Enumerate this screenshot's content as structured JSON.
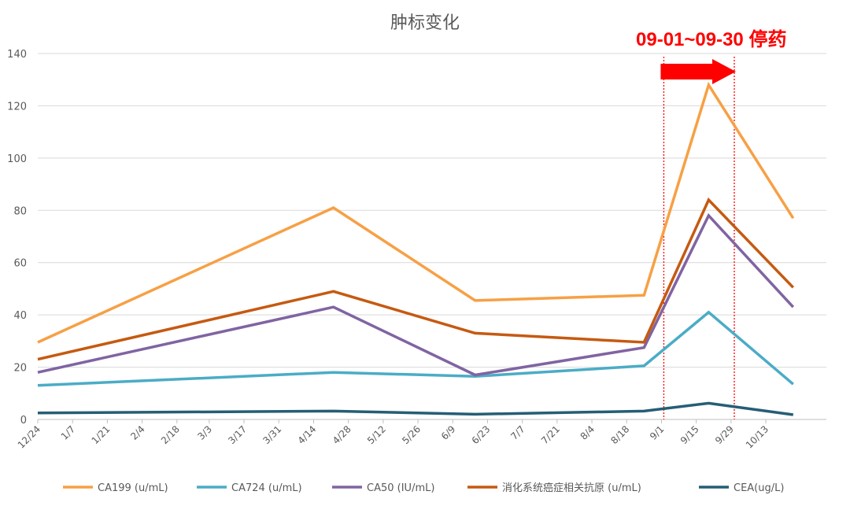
{
  "chart_data": {
    "type": "line",
    "title": "肿标变化",
    "ylim": [
      0,
      140
    ],
    "yticks": [
      0,
      20,
      40,
      60,
      80,
      100,
      120,
      140
    ],
    "grid": true,
    "legend_position": "bottom",
    "x_tick_labels": [
      "12/24",
      "1/7",
      "1/21",
      "2/4",
      "2/18",
      "3/3",
      "3/17",
      "3/31",
      "4/14",
      "4/28",
      "5/12",
      "5/26",
      "6/9",
      "6/23",
      "7/7",
      "7/21",
      "8/4",
      "8/18",
      "9/1",
      "9/15",
      "9/29",
      "10/13"
    ],
    "x_points": [
      "12/24",
      "4/22",
      "6/18",
      "8/25",
      "9/20",
      "10/24"
    ],
    "series": [
      {
        "name": "CA199 (u/mL)",
        "color": "#f7a045",
        "values": [
          29.5,
          81,
          45.5,
          47.5,
          128,
          77
        ]
      },
      {
        "name": "CA724 (u/mL)",
        "color": "#4bacc6",
        "values": [
          13,
          18,
          16.5,
          20.5,
          41,
          13.5
        ]
      },
      {
        "name": "CA50 (IU/mL)",
        "color": "#8064a2",
        "values": [
          18,
          43,
          17,
          27.5,
          78,
          43
        ]
      },
      {
        "name": "消化系统癌症相关抗原 (u/mL)",
        "color": "#c55a11",
        "values": [
          23,
          49,
          33,
          29.5,
          84,
          50.5
        ]
      },
      {
        "name": "CEA(ug/L)",
        "color": "#255e75",
        "values": [
          2.5,
          3.2,
          2,
          3.2,
          6.2,
          1.8
        ]
      }
    ],
    "annotation": {
      "text": "09-01~09-30  停药",
      "color": "#ff0000",
      "start": "9/1",
      "end": "9/30"
    }
  }
}
